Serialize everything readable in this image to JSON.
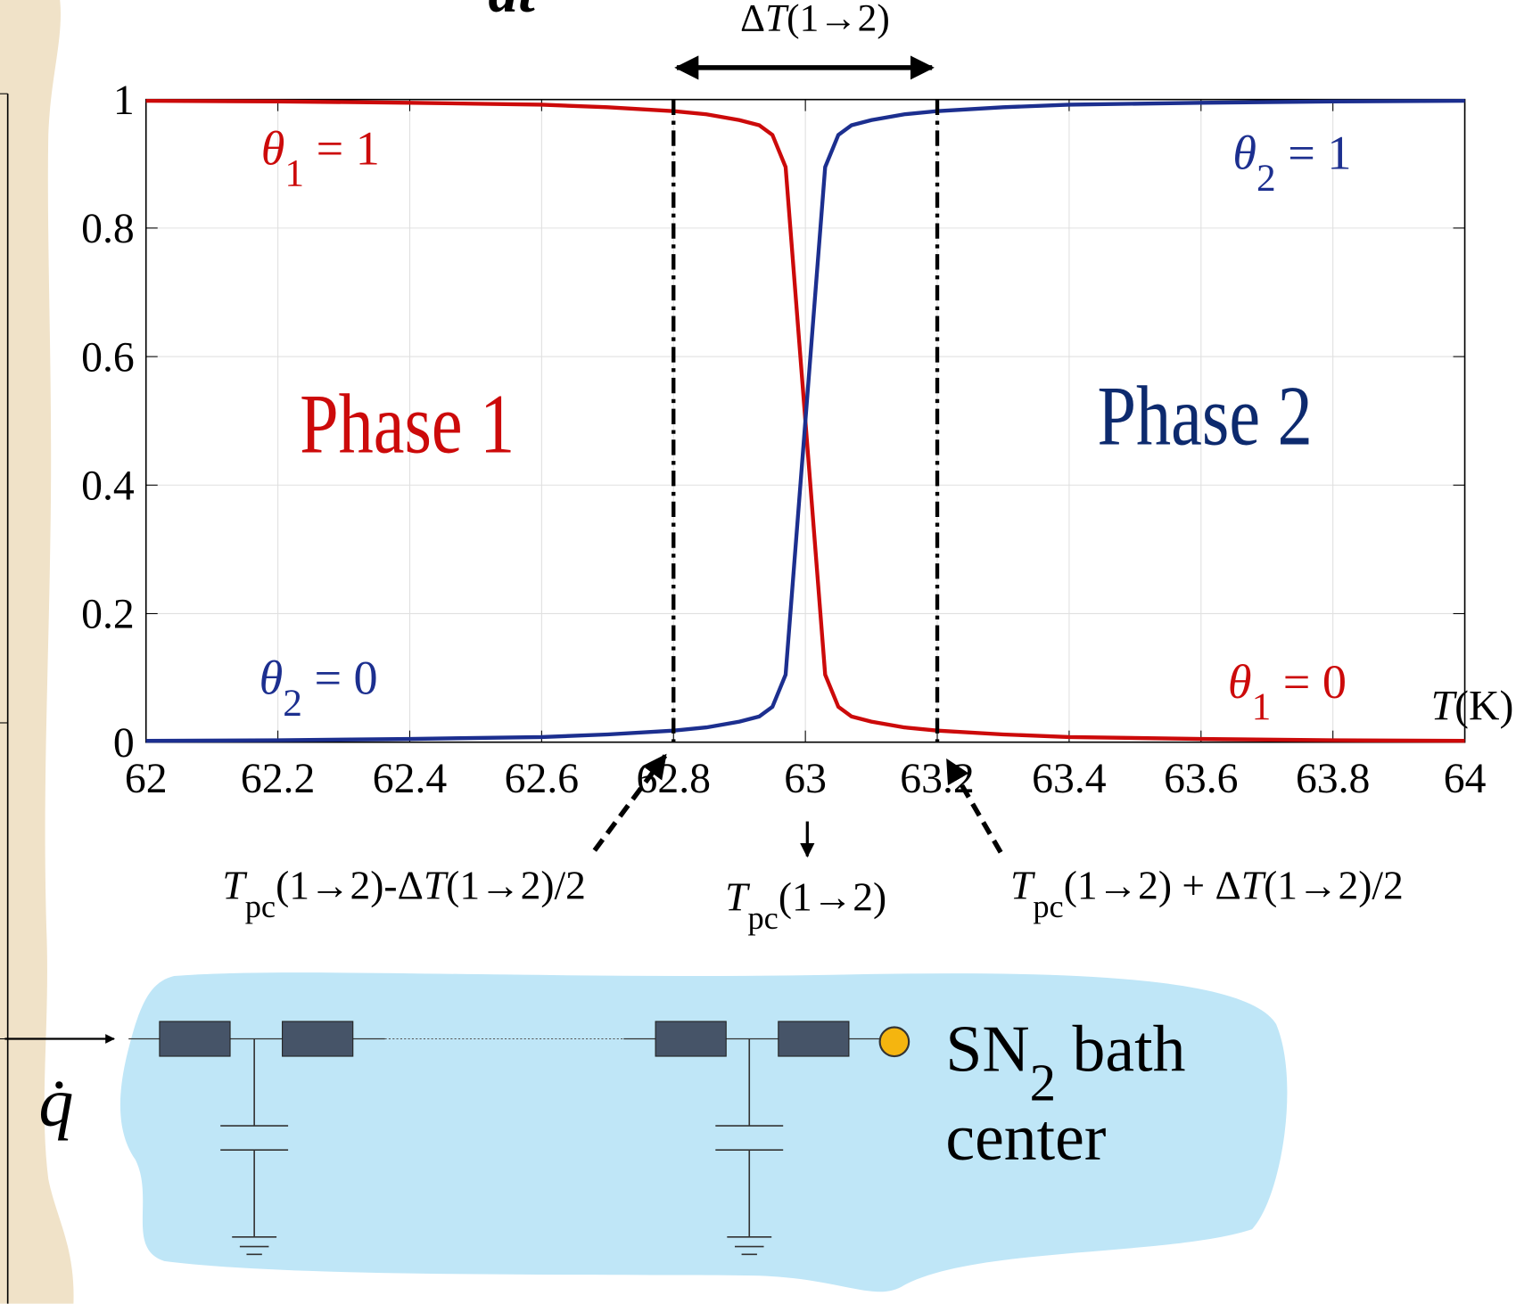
{
  "chart_data": {
    "type": "line",
    "x": [
      62,
      62.2,
      62.4,
      62.6,
      62.7,
      62.8,
      62.85,
      62.9,
      62.93,
      62.95,
      62.97,
      63,
      63.03,
      63.05,
      63.07,
      63.1,
      63.15,
      63.2,
      63.3,
      63.4,
      63.6,
      63.8,
      64
    ],
    "series": [
      {
        "color": "#cc0a0a",
        "values": [
          0.998,
          0.997,
          0.995,
          0.992,
          0.988,
          0.982,
          0.977,
          0.968,
          0.96,
          0.945,
          0.895,
          0.5,
          0.105,
          0.055,
          0.04,
          0.032,
          0.023,
          0.018,
          0.012,
          0.008,
          0.005,
          0.003,
          0.002
        ]
      },
      {
        "color": "#1c2f8f",
        "values": [
          0.002,
          0.003,
          0.005,
          0.008,
          0.012,
          0.018,
          0.023,
          0.032,
          0.04,
          0.055,
          0.105,
          0.5,
          0.895,
          0.945,
          0.96,
          0.968,
          0.977,
          0.982,
          0.988,
          0.992,
          0.995,
          0.997,
          0.998
        ]
      }
    ],
    "xlim": [
      62,
      64
    ],
    "ylim": [
      0,
      1
    ],
    "xticks": [
      62,
      62.2,
      62.4,
      62.6,
      62.8,
      63,
      63.2,
      63.4,
      63.6,
      63.8,
      64
    ],
    "yticks": [
      0,
      0.2,
      0.4,
      0.6,
      0.8,
      1
    ],
    "grid": true,
    "x_label": [
      {
        "t": "T",
        "i": true
      },
      {
        "t": "(K)"
      }
    ],
    "marker_lines": [
      62.8,
      63.2
    ],
    "annotations": [
      {
        "color": "#000000",
        "text": [
          {
            "t": "Δ"
          },
          {
            "t": "T",
            "i": true
          },
          {
            "t": "(1→2)"
          }
        ]
      },
      {
        "color": "#cc0a0a",
        "text": [
          {
            "t": "θ",
            "i": true
          },
          {
            "t": "1",
            "sub": true
          },
          {
            "t": " = 1"
          }
        ]
      },
      {
        "color": "#1c2f8f",
        "text": [
          {
            "t": "θ",
            "i": true
          },
          {
            "t": "2",
            "sub": true
          },
          {
            "t": " = 0"
          }
        ]
      },
      {
        "color": "#1c2f8f",
        "text": [
          {
            "t": "θ",
            "i": true
          },
          {
            "t": "2",
            "sub": true
          },
          {
            "t": " = 1"
          }
        ]
      },
      {
        "color": "#cc0a0a",
        "text": [
          {
            "t": "θ",
            "i": true
          },
          {
            "t": "1",
            "sub": true
          },
          {
            "t": " = 0"
          }
        ]
      },
      {
        "color": "#cc0a0a",
        "text": [
          {
            "t": "Phase 1"
          }
        ]
      },
      {
        "color": "#0d2a6e",
        "text": [
          {
            "t": "Phase 2"
          }
        ]
      },
      {
        "color": "#000000",
        "text": [
          {
            "t": "T",
            "i": true
          },
          {
            "t": "pc",
            "sub": true
          },
          {
            "t": "(1→2)-Δ"
          },
          {
            "t": "T",
            "i": true
          },
          {
            "t": "(1→2)/2"
          }
        ]
      },
      {
        "color": "#000000",
        "text": [
          {
            "t": "T",
            "i": true
          },
          {
            "t": "pc",
            "sub": true
          },
          {
            "t": "(1→2)"
          }
        ]
      },
      {
        "color": "#000000",
        "text": [
          {
            "t": "T",
            "i": true
          },
          {
            "t": "pc",
            "sub": true
          },
          {
            "t": "(1→2) + Δ"
          },
          {
            "t": "T",
            "i": true
          },
          {
            "t": "(1→2)/2"
          }
        ]
      }
    ]
  },
  "diagram": {
    "labels": [
      [
        {
          "t": "dt",
          "i": true
        }
      ],
      [
        {
          "t": "q̇",
          "i": true
        }
      ],
      [
        {
          "t": "SN"
        },
        {
          "t": "2",
          "sub": true
        },
        {
          "t": " bath"
        }
      ],
      [
        {
          "t": "center"
        }
      ]
    ]
  }
}
